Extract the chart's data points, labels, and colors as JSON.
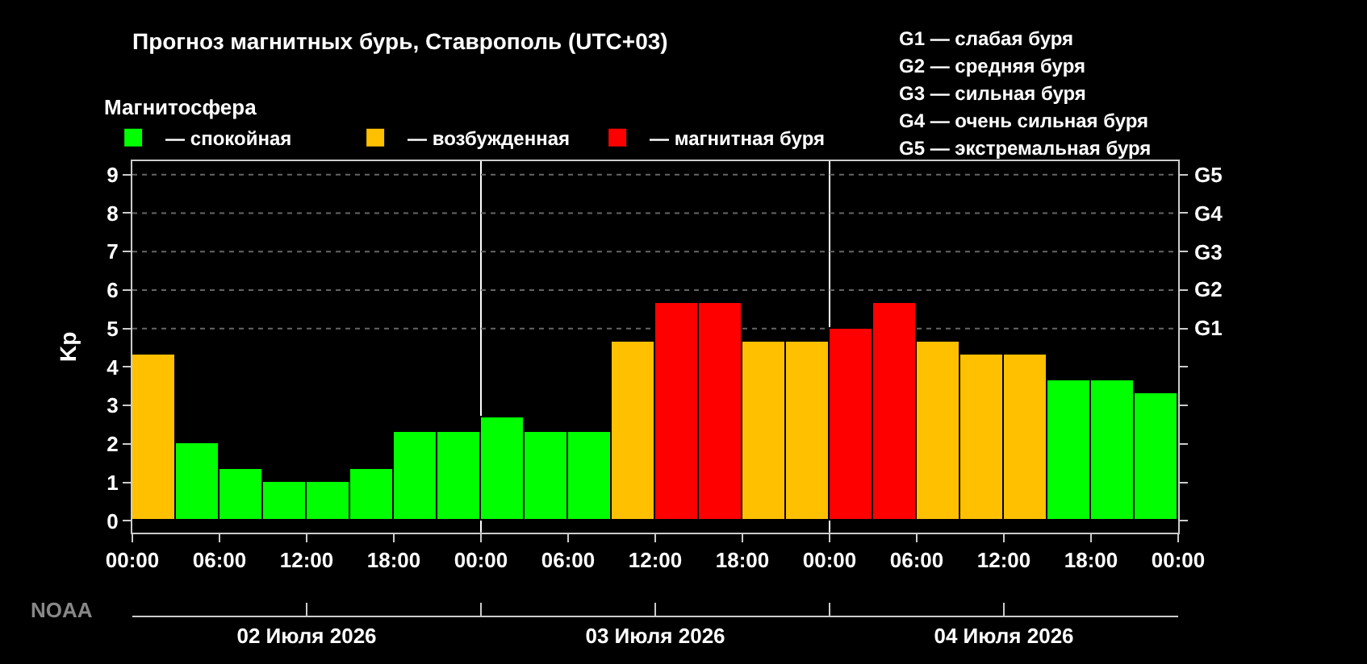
{
  "chart_data": {
    "type": "bar",
    "title": "Прогноз магнитных бурь, Ставрополь (UTC+03)",
    "ylabel": "Kp",
    "legend_title": "Магнитосфера",
    "x": [
      "2026-07-02T01:30",
      "2026-07-02T04:30",
      "2026-07-02T07:30",
      "2026-07-02T10:30",
      "2026-07-02T13:30",
      "2026-07-02T16:30",
      "2026-07-02T19:30",
      "2026-07-02T22:30",
      "2026-07-03T01:30",
      "2026-07-03T04:30",
      "2026-07-03T07:30",
      "2026-07-03T10:30",
      "2026-07-03T13:30",
      "2026-07-03T16:30",
      "2026-07-03T19:30",
      "2026-07-03T22:30",
      "2026-07-04T01:30",
      "2026-07-04T04:30",
      "2026-07-04T07:30",
      "2026-07-04T10:30",
      "2026-07-04T13:30",
      "2026-07-04T16:30",
      "2026-07-04T19:30",
      "2026-07-04T22:30"
    ],
    "series": [
      {
        "name": "— спокойная",
        "color": "#00ff00",
        "values": [
          null,
          2,
          1.33,
          1,
          1,
          1.33,
          2.33,
          2.33,
          2.67,
          2.33,
          2.33,
          null,
          null,
          null,
          null,
          null,
          null,
          null,
          null,
          null,
          null,
          3.67,
          3.67,
          3.33
        ]
      },
      {
        "name": "— возбужденная",
        "color": "#ffc000",
        "values": [
          4.33,
          null,
          null,
          null,
          null,
          null,
          null,
          null,
          null,
          null,
          null,
          4.67,
          null,
          null,
          4.67,
          4.67,
          null,
          null,
          4.67,
          4.33,
          4.33,
          null,
          null,
          null
        ]
      },
      {
        "name": "— магнитная буря",
        "color": "#ff0000",
        "values": [
          null,
          null,
          null,
          null,
          null,
          null,
          null,
          null,
          null,
          null,
          null,
          null,
          5.67,
          5.67,
          null,
          null,
          5,
          5.67,
          null,
          null,
          null,
          null,
          null,
          null
        ]
      }
    ],
    "xlim": [
      "2026-07-02T00:00",
      "2026-07-05T00:00"
    ],
    "xticks": [
      {
        "value": "2026-07-02T00:00",
        "label": "00:00"
      },
      {
        "value": "2026-07-02T06:00",
        "label": "06:00"
      },
      {
        "value": "2026-07-02T12:00",
        "label": "12:00"
      },
      {
        "value": "2026-07-02T18:00",
        "label": "18:00"
      },
      {
        "value": "2026-07-03T00:00",
        "label": "00:00"
      },
      {
        "value": "2026-07-03T06:00",
        "label": "06:00"
      },
      {
        "value": "2026-07-03T12:00",
        "label": "12:00"
      },
      {
        "value": "2026-07-03T18:00",
        "label": "18:00"
      },
      {
        "value": "2026-07-04T00:00",
        "label": "00:00"
      },
      {
        "value": "2026-07-04T06:00",
        "label": "06:00"
      },
      {
        "value": "2026-07-04T12:00",
        "label": "12:00"
      },
      {
        "value": "2026-07-04T18:00",
        "label": "18:00"
      },
      {
        "value": "2026-07-05T00:00",
        "label": "00:00"
      }
    ],
    "x2lim": [
      "2026-07-02T00:00",
      "2026-07-05T00:00"
    ],
    "x2ticks": [
      {
        "value": "2026-07-02T00:00",
        "label": null
      },
      {
        "value": "2026-07-02T12:00",
        "label": "02 Июля 2026"
      },
      {
        "value": "2026-07-03T00:00",
        "label": null
      },
      {
        "value": "2026-07-03T12:00",
        "label": "03 Июля 2026"
      },
      {
        "value": "2026-07-04T00:00",
        "label": null
      },
      {
        "value": "2026-07-04T12:00",
        "label": "04 Июля 2026"
      },
      {
        "value": "2026-07-05T00:00",
        "label": null
      }
    ],
    "ylim": [
      -0.3,
      9.35
    ],
    "yticks": [
      0,
      1,
      2,
      3,
      4,
      5,
      6,
      7,
      8,
      9
    ],
    "legend": "top left",
    "ref_lines": [
      {
        "axis": "x",
        "value": "2026-07-03T00:00",
        "color": "#ffffff"
      },
      {
        "axis": "x",
        "value": "2026-07-04T00:00",
        "color": "#ffffff"
      },
      {
        "axis": "y",
        "value": 5,
        "label": "G1",
        "color": "#666666",
        "line_style": "dotted"
      },
      {
        "axis": "y",
        "value": 6,
        "label": "G2",
        "color": "#666666",
        "line_style": "dotted"
      },
      {
        "axis": "y",
        "value": 7,
        "label": "G3",
        "color": "#666666",
        "line_style": "dotted"
      },
      {
        "axis": "y",
        "value": 8,
        "label": "G4",
        "color": "#666666",
        "line_style": "dotted"
      },
      {
        "axis": "y",
        "value": 9,
        "label": "G5",
        "color": "#666666",
        "line_style": "dotted"
      }
    ],
    "annotations": [
      "G1 — слабая буря",
      "G2 — средняя буря",
      "G3 — сильная буря",
      "G4 — очень сильная буря",
      "G5 — экстремальная буря",
      "NOAA"
    ]
  }
}
